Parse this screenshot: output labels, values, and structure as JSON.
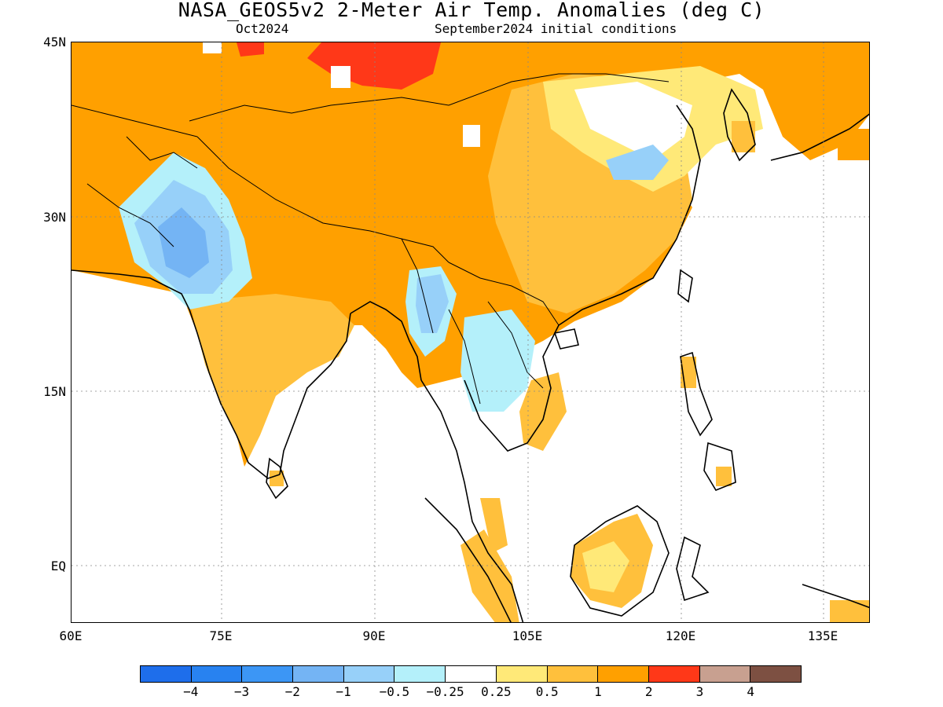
{
  "title": "NASA_GEOS5v2 2-Meter Air Temp. Anomalies (deg C)",
  "subtitle_left": "Oct2024",
  "subtitle_right": "September2024 initial conditions",
  "map": {
    "projection": "equirectangular",
    "lon_range": [
      60,
      140
    ],
    "lat_range": [
      -6,
      45
    ],
    "lat_labels": [
      "45N",
      "30N",
      "15N",
      "EQ"
    ],
    "lon_labels": [
      "60E",
      "75E",
      "90E",
      "105E",
      "120E",
      "135E"
    ],
    "gridlines": "dotted",
    "ocean_shading": "none (white)"
  },
  "anomaly_regions": [
    {
      "region": "Mongolia / northern China",
      "anomaly_class": "1 to 2",
      "color": "#ffa000"
    },
    {
      "region": "Western Mongolia",
      "anomaly_class": "2 to 3",
      "color": "#ff3818"
    },
    {
      "region": "Pakistan / NW India",
      "anomaly_class": "-2 to -1",
      "color": "#74b4f4"
    },
    {
      "region": "Myanmar",
      "anomaly_class": "-1 to -0.5",
      "color": "#97d0f9"
    },
    {
      "region": "Thailand / Laos",
      "anomaly_class": "-0.5 to -0.25",
      "color": "#b4f0fa"
    },
    {
      "region": "East China coast",
      "anomaly_class": "-1 to -0.5",
      "color": "#97d0f9"
    },
    {
      "region": "Borneo",
      "anomaly_class": "0.5 to 1",
      "color": "#ffc03c"
    },
    {
      "region": "Central / south India",
      "anomaly_class": "0.5 to 1",
      "color": "#ffc03c"
    }
  ],
  "colorbar": {
    "colors": [
      "#1e6eeb",
      "#2882f0",
      "#3c96f5",
      "#74b4f4",
      "#97d0f9",
      "#b4f0fa",
      "#ffffff",
      "#ffe978",
      "#ffc03c",
      "#ffa000",
      "#ff3818",
      "#c8a090",
      "#7d5042"
    ],
    "labels": [
      "-4",
      "-3",
      "-2",
      "-1",
      "-0.5",
      "-0.25",
      "0.25",
      "0.5",
      "1",
      "2",
      "3",
      "4"
    ]
  }
}
